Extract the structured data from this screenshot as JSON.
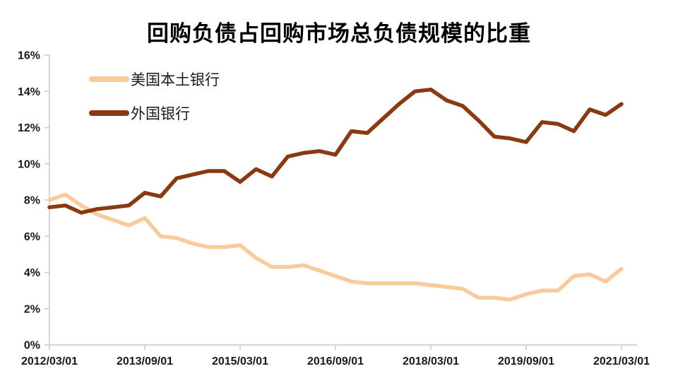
{
  "title": "回购负债占回购市场总负债规模的比重",
  "colors": {
    "us_banks_line": "#F9CB9B",
    "foreign_banks_line": "#8A3910",
    "axis": "#C9C9C9",
    "text": "#1A1A1A",
    "background": "#FFFFFF"
  },
  "legend": {
    "items": [
      {
        "label": "美国本土银行"
      },
      {
        "label": "外国银行"
      }
    ]
  },
  "chart_data": {
    "type": "line",
    "title": "回购负债占回购市场总负债规模的比重",
    "xlabel": "",
    "ylabel": "",
    "ylim": [
      0,
      16
    ],
    "ytick_labels": [
      "0%",
      "2%",
      "4%",
      "6%",
      "8%",
      "10%",
      "12%",
      "14%",
      "16%"
    ],
    "grid": false,
    "legend_position": "upper-left-inside",
    "x": [
      "2012/03/01",
      "2012/06/01",
      "2012/09/01",
      "2012/12/01",
      "2013/03/01",
      "2013/06/01",
      "2013/09/01",
      "2013/12/01",
      "2014/03/01",
      "2014/06/01",
      "2014/09/01",
      "2014/12/01",
      "2015/03/01",
      "2015/06/01",
      "2015/09/01",
      "2015/12/01",
      "2016/03/01",
      "2016/06/01",
      "2016/09/01",
      "2016/12/01",
      "2017/03/01",
      "2017/06/01",
      "2017/09/01",
      "2017/12/01",
      "2018/03/01",
      "2018/06/01",
      "2018/09/01",
      "2018/12/01",
      "2019/03/01",
      "2019/06/01",
      "2019/09/01",
      "2019/12/01",
      "2020/03/01",
      "2020/06/01",
      "2020/09/01",
      "2020/12/01",
      "2021/03/01"
    ],
    "x_tick_indices": [
      0,
      6,
      12,
      18,
      24,
      30,
      36
    ],
    "x_tick_labels": [
      "2012/03/01",
      "2013/09/01",
      "2015/03/01",
      "2016/09/01",
      "2018/03/01",
      "2019/09/01",
      "2021/03/01"
    ],
    "unit": "%",
    "series": [
      {
        "name": "美国本土银行",
        "color": "#F9CB9B",
        "values": [
          8.0,
          8.3,
          7.7,
          7.2,
          6.9,
          6.6,
          7.0,
          6.0,
          5.9,
          5.6,
          5.4,
          5.4,
          5.5,
          4.8,
          4.3,
          4.3,
          4.4,
          4.1,
          3.8,
          3.5,
          3.4,
          3.4,
          3.4,
          3.4,
          3.3,
          3.2,
          3.1,
          2.6,
          2.6,
          2.5,
          2.8,
          3.0,
          3.0,
          3.8,
          3.9,
          3.5,
          4.2
        ]
      },
      {
        "name": "外国银行",
        "color": "#8A3910",
        "values": [
          7.6,
          7.7,
          7.3,
          7.5,
          7.6,
          7.7,
          8.4,
          8.2,
          9.2,
          9.4,
          9.6,
          9.6,
          9.0,
          9.7,
          9.3,
          10.4,
          10.6,
          10.7,
          10.5,
          11.8,
          11.7,
          12.5,
          13.3,
          14.0,
          14.1,
          13.5,
          13.2,
          12.4,
          11.5,
          11.4,
          11.2,
          12.3,
          12.2,
          11.8,
          13.0,
          12.7,
          13.3
        ]
      }
    ]
  }
}
